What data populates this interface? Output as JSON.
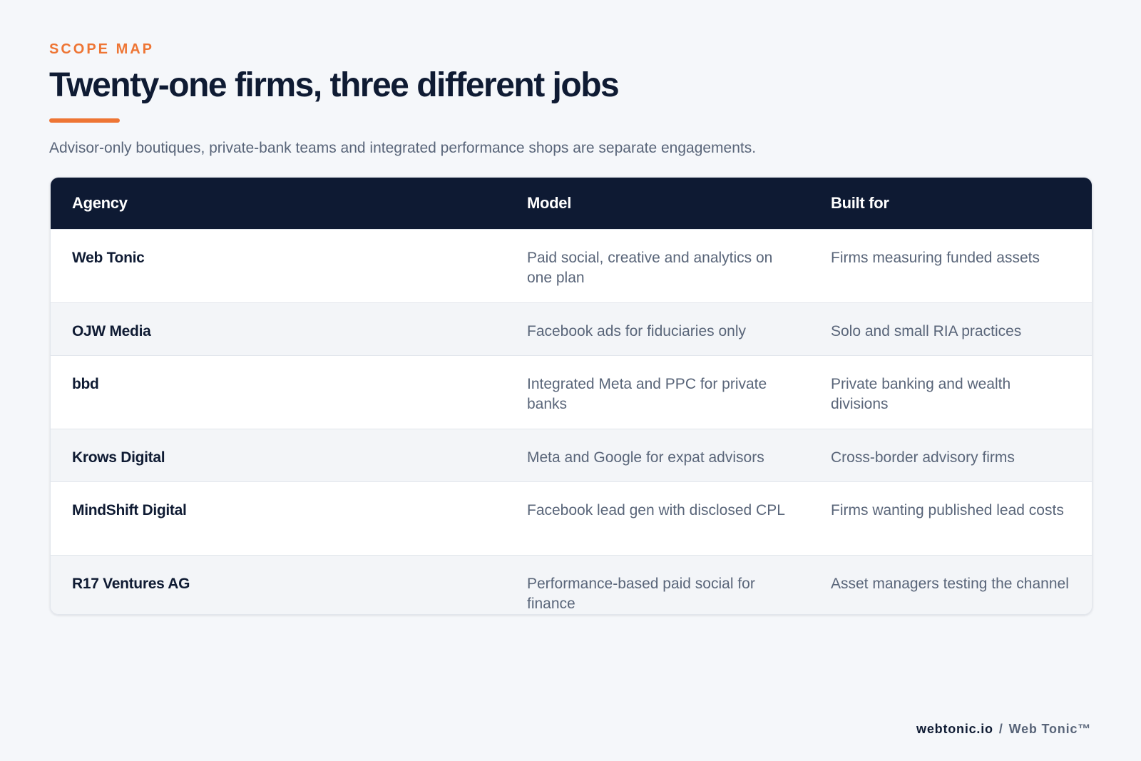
{
  "eyebrow": "SCOPE MAP",
  "title": "Twenty-one firms, three different jobs",
  "subtitle": "Advisor-only boutiques, private-bank teams and integrated performance shops are separate engagements.",
  "table": {
    "header": [
      "Agency",
      "Model",
      "Built for"
    ],
    "rows": [
      [
        "Web Tonic",
        "Paid social, creative and analytics on one plan",
        "Firms measuring funded assets"
      ],
      [
        "OJW Media",
        "Facebook ads for fiduciaries only",
        "Solo and small RIA practices"
      ],
      [
        "bbd",
        "Integrated Meta and PPC for private banks",
        "Private banking and wealth divisions"
      ],
      [
        "Krows Digital",
        "Meta and Google for expat advisors",
        "Cross-border advisory firms"
      ],
      [
        "MindShift Digital",
        "Facebook lead gen with disclosed CPL",
        "Firms wanting published lead costs"
      ],
      [
        "R17 Ventures AG",
        "Performance-based paid social for finance",
        "Asset managers testing the channel"
      ]
    ]
  },
  "footer": {
    "site": "webtonic.io",
    "separator": "/",
    "brand": "Web Tonic™"
  }
}
